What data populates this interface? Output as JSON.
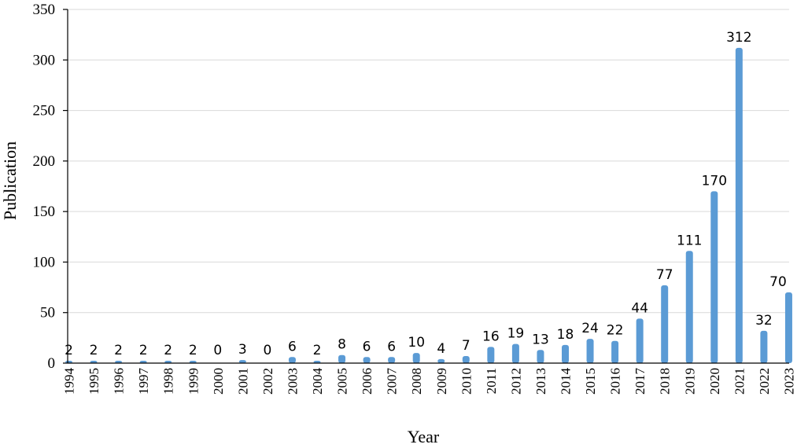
{
  "chart_data": {
    "type": "bar",
    "title": "",
    "xlabel": "Year",
    "ylabel": "Publication",
    "ylim": [
      0,
      350
    ],
    "yticks": [
      0,
      50,
      100,
      150,
      200,
      250,
      300,
      350
    ],
    "grid": true,
    "legend": "none",
    "bar_color": "#5b9bd5",
    "categories": [
      "1994",
      "1995",
      "1996",
      "1997",
      "1998",
      "1999",
      "2000",
      "2001",
      "2002",
      "2003",
      "2004",
      "2005",
      "2006",
      "2007",
      "2008",
      "2009",
      "2010",
      "2011",
      "2012",
      "2013",
      "2014",
      "2015",
      "2016",
      "2017",
      "2018",
      "2019",
      "2020",
      "2021",
      "2022",
      "2023"
    ],
    "values": [
      2,
      2,
      2,
      2,
      2,
      2,
      0,
      3,
      0,
      6,
      2,
      8,
      6,
      6,
      10,
      4,
      7,
      16,
      19,
      13,
      18,
      24,
      22,
      44,
      77,
      111,
      170,
      312,
      32,
      70
    ]
  }
}
